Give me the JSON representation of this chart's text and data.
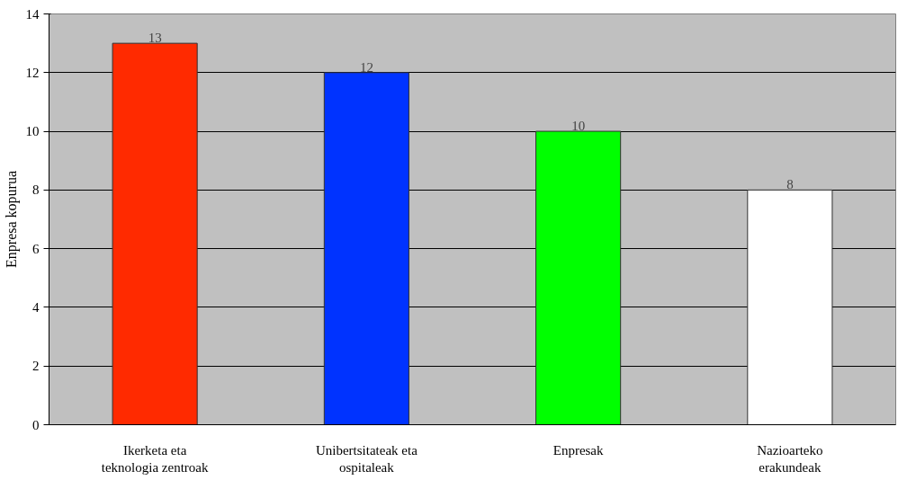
{
  "chart_data": {
    "type": "bar",
    "ylabel": "Enpresa kopurua",
    "categories": [
      "Ikerketa eta\nteknologia zentroak",
      "Unibertsitateak eta\nospitaleak",
      "Enpresak",
      "Nazioarteko\nerakundeak"
    ],
    "values": [
      13,
      12,
      10,
      8
    ],
    "colors": [
      "#ff2a00",
      "#0033ff",
      "#00ff00",
      "#ffffff"
    ],
    "ylim": [
      0,
      14
    ],
    "yticks": [
      0,
      2,
      4,
      6,
      8,
      10,
      12,
      14
    ],
    "grid": "y",
    "data_labels": true
  }
}
